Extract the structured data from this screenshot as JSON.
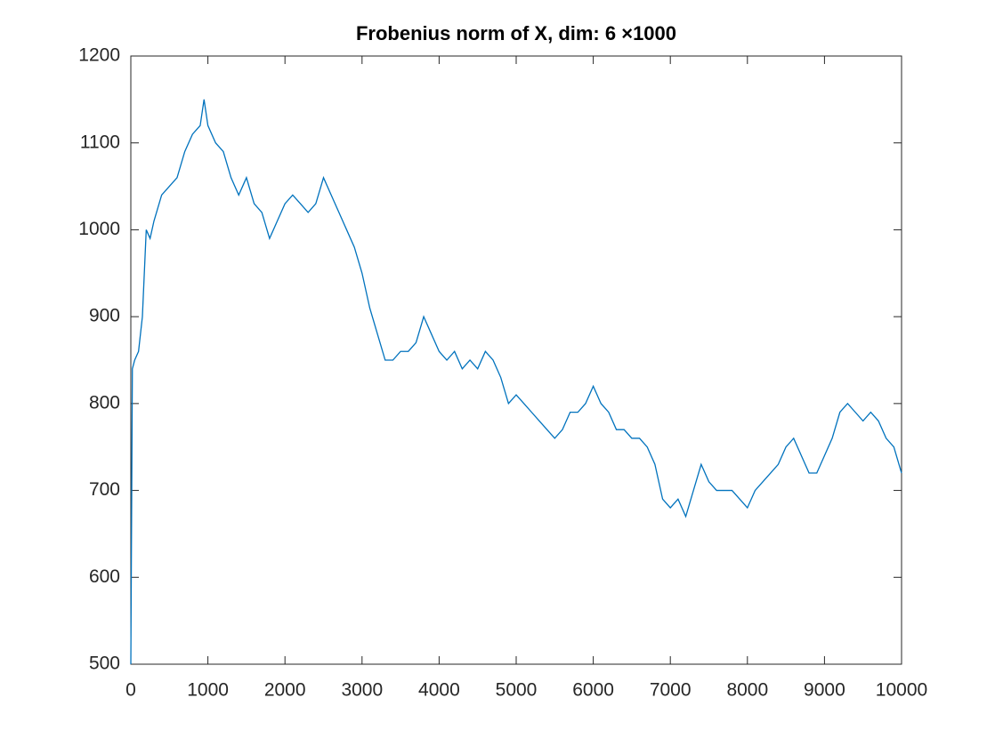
{
  "chart_data": {
    "type": "line",
    "title": "Frobenius norm of X, dim: 6 ×1000",
    "x": [
      0,
      20,
      50,
      100,
      150,
      200,
      250,
      300,
      400,
      500,
      600,
      700,
      800,
      900,
      950,
      1000,
      1100,
      1200,
      1300,
      1400,
      1500,
      1600,
      1700,
      1800,
      1900,
      2000,
      2100,
      2200,
      2300,
      2400,
      2500,
      2600,
      2700,
      2800,
      2900,
      3000,
      3100,
      3200,
      3300,
      3400,
      3500,
      3600,
      3700,
      3800,
      3900,
      4000,
      4100,
      4200,
      4300,
      4400,
      4500,
      4600,
      4700,
      4800,
      4900,
      5000,
      5100,
      5200,
      5300,
      5400,
      5500,
      5600,
      5700,
      5800,
      5900,
      6000,
      6100,
      6200,
      6300,
      6400,
      6500,
      6600,
      6700,
      6800,
      6900,
      7000,
      7100,
      7200,
      7300,
      7400,
      7500,
      7600,
      7700,
      7800,
      7900,
      8000,
      8100,
      8200,
      8300,
      8400,
      8500,
      8600,
      8700,
      8800,
      8900,
      9000,
      9100,
      9200,
      9300,
      9400,
      9500,
      9600,
      9700,
      9800,
      9900,
      10000
    ],
    "series": [
      {
        "color": "#0072bd",
        "values": [
          500,
          840,
          850,
          860,
          900,
          1000,
          990,
          1010,
          1040,
          1050,
          1060,
          1090,
          1110,
          1120,
          1150,
          1120,
          1100,
          1090,
          1060,
          1040,
          1060,
          1030,
          1020,
          990,
          1010,
          1030,
          1040,
          1030,
          1020,
          1030,
          1060,
          1040,
          1020,
          1000,
          980,
          950,
          910,
          880,
          850,
          850,
          860,
          860,
          870,
          900,
          880,
          860,
          850,
          860,
          840,
          850,
          840,
          860,
          850,
          830,
          800,
          810,
          800,
          790,
          780,
          770,
          760,
          770,
          790,
          790,
          800,
          820,
          800,
          790,
          770,
          770,
          760,
          760,
          750,
          730,
          690,
          680,
          690,
          670,
          700,
          730,
          710,
          700,
          700,
          700,
          690,
          680,
          700,
          710,
          720,
          730,
          750,
          760,
          740,
          720,
          720,
          740,
          760,
          790,
          800,
          790,
          780,
          790,
          780,
          760,
          750,
          720
        ]
      }
    ],
    "xlim": [
      0,
      10000
    ],
    "xticks": [
      0,
      1000,
      2000,
      3000,
      4000,
      5000,
      6000,
      7000,
      8000,
      9000,
      10000
    ],
    "ylim": [
      500,
      1200
    ],
    "yticks": [
      500,
      600,
      700,
      800,
      900,
      1000,
      1100,
      1200
    ]
  }
}
